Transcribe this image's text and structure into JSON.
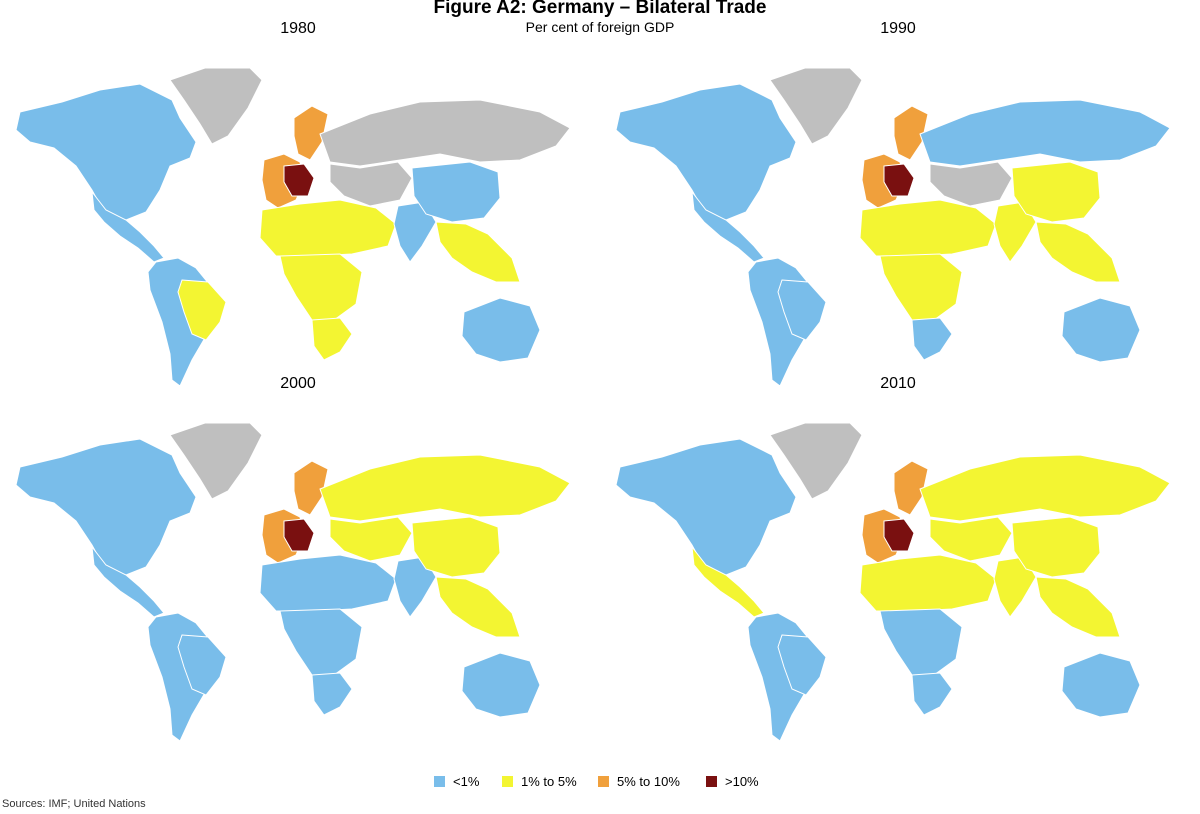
{
  "title": "Figure A2: Germany – Bilateral Trade",
  "subtitle": "Per cent of foreign GDP",
  "colors": {
    "lt1": "#79bdea",
    "1to5": "#f3f532",
    "5to10": "#f0a03c",
    "gt10": "#7a1010",
    "nodata": "#bfbfbf"
  },
  "legend": [
    {
      "key": "lt1",
      "label": "<1%"
    },
    {
      "key": "1to5",
      "label": "1% to 5%"
    },
    {
      "key": "5to10",
      "label": "5% to 10%"
    },
    {
      "key": "gt10",
      "label": ">10%"
    }
  ],
  "panels": [
    {
      "year": "1980",
      "regions": {
        "north_america": "lt1",
        "greenland": "nodata",
        "mexico_central": "lt1",
        "south_america": "lt1",
        "brazil": "1to5",
        "western_europe": "5to10",
        "central_europe": "gt10",
        "scandinavia": "5to10",
        "russia": "nodata",
        "north_africa_mideast": "1to5",
        "central_africa": "1to5",
        "southern_africa": "1to5",
        "central_asia": "nodata",
        "south_asia": "lt1",
        "china": "lt1",
        "southeast_asia": "1to5",
        "australia": "lt1"
      }
    },
    {
      "year": "1990",
      "regions": {
        "north_america": "lt1",
        "greenland": "nodata",
        "mexico_central": "lt1",
        "south_america": "lt1",
        "brazil": "lt1",
        "western_europe": "5to10",
        "central_europe": "gt10",
        "scandinavia": "5to10",
        "russia": "lt1",
        "north_africa_mideast": "1to5",
        "central_africa": "1to5",
        "southern_africa": "lt1",
        "central_asia": "nodata",
        "south_asia": "1to5",
        "china": "1to5",
        "southeast_asia": "1to5",
        "australia": "lt1"
      }
    },
    {
      "year": "2000",
      "regions": {
        "north_america": "lt1",
        "greenland": "nodata",
        "mexico_central": "lt1",
        "south_america": "lt1",
        "brazil": "lt1",
        "western_europe": "5to10",
        "central_europe": "gt10",
        "scandinavia": "5to10",
        "russia": "1to5",
        "north_africa_mideast": "lt1",
        "central_africa": "lt1",
        "southern_africa": "lt1",
        "central_asia": "1to5",
        "south_asia": "lt1",
        "china": "1to5",
        "southeast_asia": "1to5",
        "australia": "lt1"
      }
    },
    {
      "year": "2010",
      "regions": {
        "north_america": "lt1",
        "greenland": "nodata",
        "mexico_central": "1to5",
        "south_america": "lt1",
        "brazil": "lt1",
        "western_europe": "5to10",
        "central_europe": "gt10",
        "scandinavia": "5to10",
        "russia": "1to5",
        "north_africa_mideast": "1to5",
        "central_africa": "lt1",
        "southern_africa": "lt1",
        "central_asia": "1to5",
        "south_asia": "1to5",
        "china": "1to5",
        "southeast_asia": "1to5",
        "australia": "lt1"
      }
    }
  ],
  "source": "Sources:  IMF; United Nations"
}
